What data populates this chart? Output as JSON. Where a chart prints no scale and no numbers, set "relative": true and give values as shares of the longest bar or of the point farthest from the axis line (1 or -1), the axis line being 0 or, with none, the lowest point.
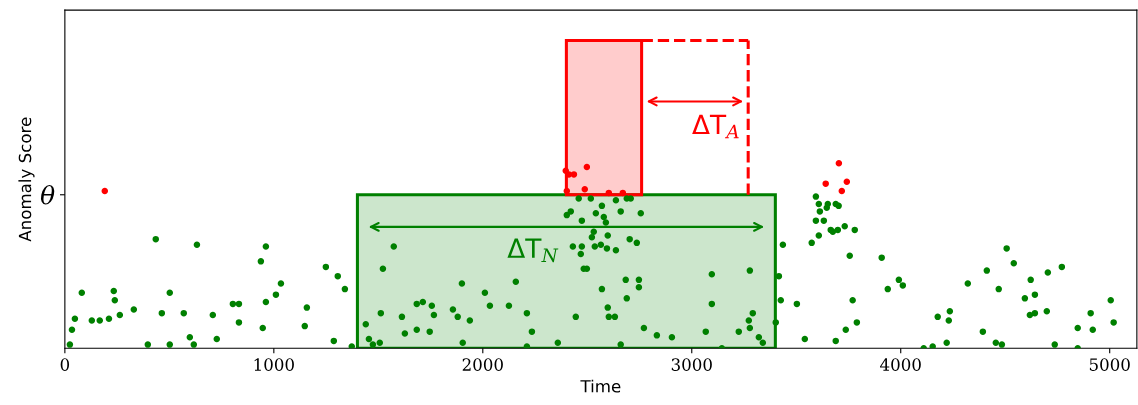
{
  "chart_data": {
    "type": "scatter",
    "xlabel": "Time",
    "ylabel": "Anomaly Score",
    "relative": true,
    "marker": "circle",
    "grid": false,
    "xlim": [
      0,
      5130
    ],
    "xticks": [
      0,
      1000,
      2000,
      3000,
      4000,
      5000
    ],
    "ref_lines": [
      {
        "axis": "y",
        "value": 0.83,
        "label": "θ"
      },
      {
        "axis": "x",
        "value": 3270,
        "label": "ΔT$_{A}$",
        "color": "#ff0000",
        "line_style": "dashed"
      }
    ],
    "bands": [
      {
        "axis": "x",
        "from": 1400,
        "to": 3400,
        "label": "ΔT$_{N}$",
        "color": "#008000"
      },
      {
        "axis": "x",
        "from": 2400,
        "to": 2760,
        "color": "#ff0000"
      }
    ],
    "series": [
      {
        "color": "#008000",
        "x": [
          24,
          34,
          48,
          81,
          129,
          167,
          211,
          234,
          239,
          263,
          330,
          397,
          435,
          464,
          502,
          502,
          569,
          598,
          617,
          632,
          708,
          727,
          804,
          833,
          833,
          938,
          962,
          947,
          962,
          1010,
          1034,
          1148,
          1158,
          1249,
          1306,
          1340,
          1287,
          1373,
          1440,
          1455,
          1474,
          1507,
          1512,
          1522,
          1574,
          1613,
          1627,
          1684,
          1713,
          1756,
          1766,
          1684,
          1746,
          1900,
          1904,
          2010,
          2034,
          2125,
          2158,
          2211,
          2235,
          2211,
          2359,
          2445,
          1857,
          1880,
          1938,
          2431,
          2474,
          2469,
          2483,
          2498,
          2402,
          2421,
          2459,
          2474,
          2517,
          2541,
          2570,
          2579,
          2589,
          2531,
          2522,
          2536,
          2565,
          2594,
          2598,
          2637,
          2637,
          2660,
          2689,
          2708,
          2703,
          2737,
          2756,
          2570,
          2598,
          2603,
          2632,
          2684,
          2689,
          2747,
          2747,
          2660,
          2771,
          2833,
          2905,
          3067,
          3096,
          3096,
          3225,
          3278,
          3292,
          3273,
          3278,
          3321,
          3340,
          3402,
          3417,
          3426,
          3436,
          3503,
          3144,
          3541,
          3574,
          3594,
          3608,
          3613,
          3594,
          3632,
          3651,
          3646,
          3689,
          3703,
          3608,
          3665,
          3675,
          3699,
          3732,
          3780,
          3756,
          3770,
          3790,
          3737,
          3689,
          3909,
          3938,
          3991,
          4010,
          4110,
          4153,
          4177,
          4235,
          4230,
          4220,
          4321,
          4393,
          4412,
          4469,
          4455,
          4484,
          4507,
          4541,
          4594,
          4618,
          4642,
          4622,
          4642,
          4704,
          4699,
          4771,
          4737,
          4847,
          4847,
          4909,
          4919,
          5005,
          5019
        ],
        "values": [
          0.02,
          0.1,
          0.16,
          0.3,
          0.15,
          0.15,
          0.16,
          0.31,
          0.26,
          0.18,
          0.21,
          0.02,
          0.59,
          0.19,
          0.3,
          0.02,
          0.19,
          0.06,
          0.02,
          0.56,
          0.18,
          0.05,
          0.24,
          0.24,
          0.14,
          0.47,
          0.55,
          0.11,
          0.25,
          0.29,
          0.35,
          0.12,
          0.22,
          0.44,
          0.39,
          0.32,
          0.04,
          0.01,
          0.13,
          0.05,
          0.02,
          0.03,
          0.19,
          0.43,
          0.55,
          0.17,
          0.08,
          0.24,
          0.25,
          0.23,
          0.18,
          0.1,
          0.09,
          0.35,
          0.03,
          0.3,
          0.23,
          0.23,
          0.36,
          0.19,
          0.09,
          0.01,
          0.03,
          0.17,
          0.21,
          0.17,
          0.15,
          0.55,
          0.55,
          0.51,
          0.43,
          0.43,
          0.72,
          0.74,
          0.81,
          0.69,
          0.81,
          0.73,
          0.77,
          0.71,
          0.68,
          0.63,
          0.6,
          0.55,
          0.56,
          0.54,
          0.61,
          0.53,
          0.8,
          0.74,
          0.81,
          0.81,
          0.59,
          0.57,
          0.73,
          0.32,
          0.22,
          0.17,
          0.17,
          0.37,
          0.27,
          0.37,
          0.33,
          0.02,
          0.11,
          0.07,
          0.06,
          0.09,
          0.4,
          0.24,
          0.09,
          0.42,
          0.19,
          0.15,
          0.11,
          0.06,
          0.03,
          0.14,
          0.39,
          0.26,
          0.56,
          0.24,
          0.0,
          0.05,
          0.57,
          0.82,
          0.78,
          0.74,
          0.69,
          0.69,
          0.78,
          0.76,
          0.78,
          0.77,
          0.61,
          0.64,
          0.63,
          0.64,
          0.66,
          0.64,
          0.5,
          0.26,
          0.14,
          0.1,
          0.04,
          0.49,
          0.32,
          0.37,
          0.34,
          0.0,
          0.01,
          0.17,
          0.2,
          0.15,
          0.03,
          0.35,
          0.09,
          0.42,
          0.32,
          0.03,
          0.02,
          0.54,
          0.46,
          0.27,
          0.18,
          0.19,
          0.37,
          0.29,
          0.41,
          0.2,
          0.44,
          0.02,
          0.11,
          0.0,
          0.19,
          0.1,
          0.26,
          0.14
        ]
      },
      {
        "color": "#ff0000",
        "x": [
          191,
          2397,
          2436,
          2412,
          2498,
          2402,
          2488,
          2603,
          2670,
          3704,
          3641,
          3742,
          3718
        ],
        "values": [
          0.85,
          0.96,
          0.94,
          0.94,
          0.98,
          0.85,
          0.86,
          0.84,
          0.84,
          1.0,
          0.89,
          0.9,
          0.85
        ]
      }
    ]
  }
}
